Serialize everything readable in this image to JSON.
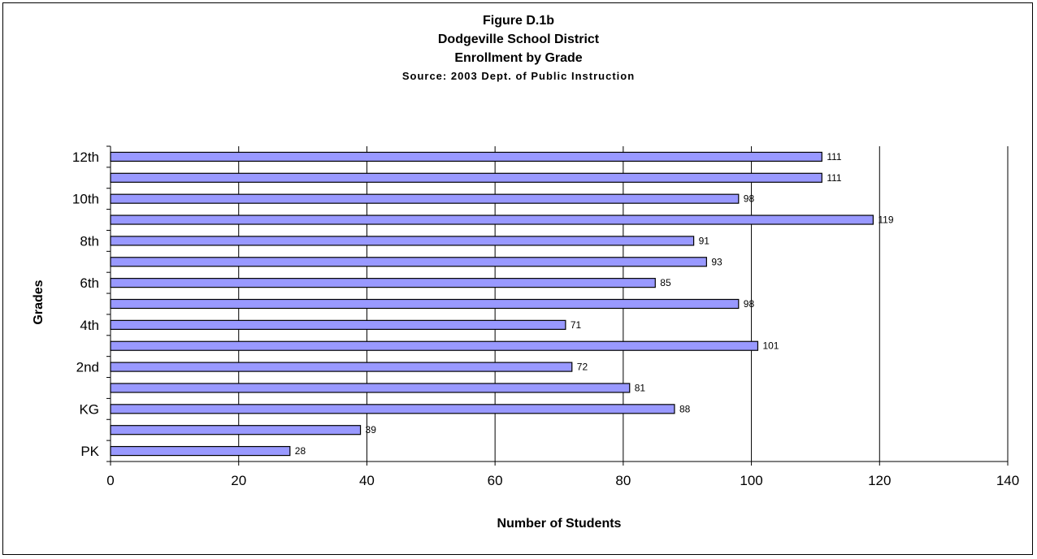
{
  "chart_data": {
    "type": "bar",
    "orientation": "horizontal",
    "title": "Figure D.1b",
    "subtitle_lines": [
      "Dodgeville School District",
      "Enrollment by Grade"
    ],
    "source": "Source: 2003 Dept. of Public Instruction",
    "xlabel": "Number of Students",
    "ylabel": "Grades",
    "xlim": [
      0,
      140
    ],
    "xticks": [
      "0",
      "20",
      "40",
      "60",
      "80",
      "100",
      "120",
      "140"
    ],
    "categories": [
      "12th",
      "",
      "10th",
      "",
      "8th",
      "",
      "6th",
      "",
      "4th",
      "",
      "2nd",
      "",
      "KG",
      "",
      "PK"
    ],
    "values": [
      111,
      111,
      98,
      119,
      91,
      93,
      85,
      98,
      71,
      101,
      72,
      81,
      88,
      39,
      28
    ],
    "bar_color": "#9999ff",
    "grid": "vertical",
    "legend": "none"
  }
}
